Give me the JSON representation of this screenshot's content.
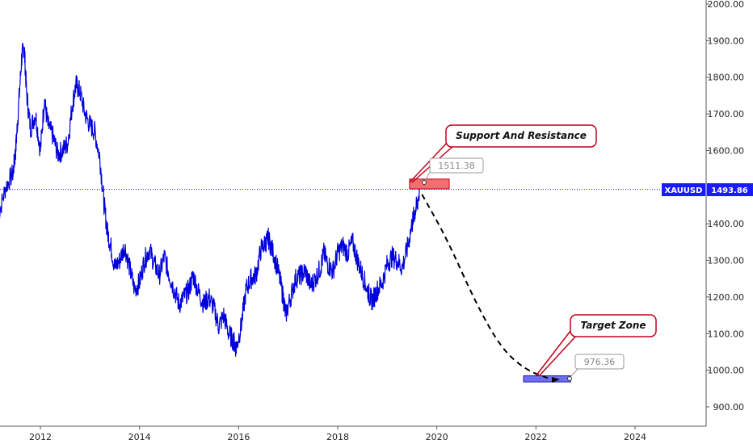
{
  "chart_data": {
    "type": "line",
    "symbol": "XAUUSD",
    "last_price": "1493.86",
    "last_price_value": 1493.86,
    "colors": {
      "series": "#0000dd",
      "resistance_zone": "#f07070",
      "target_zone": "#6e6ef0",
      "callout_border": "#c0001a",
      "last_tag_bg": "#1a1aff",
      "dash": "#000000"
    },
    "ylim": [
      860,
      2000
    ],
    "yticks": [
      "900.00",
      "1000.00",
      "1100.00",
      "1200.00",
      "1300.00",
      "1400.00",
      "1500.00",
      "1600.00",
      "1700.00",
      "1800.00",
      "1900.00",
      "2000.00"
    ],
    "ytick_values": [
      900,
      1000,
      1100,
      1200,
      1300,
      1400,
      1500,
      1600,
      1700,
      1800,
      1900,
      2000
    ],
    "xlim": [
      2011.15,
      2025.3
    ],
    "xticks": [
      "2012",
      "2014",
      "2016",
      "2018",
      "2020",
      "2022",
      "2024"
    ],
    "xtick_values": [
      2012,
      2014,
      2016,
      2018,
      2020,
      2022,
      2024
    ],
    "series": [
      {
        "x": [
          2011.15,
          2011.3,
          2011.45,
          2011.5,
          2011.55,
          2011.62,
          2011.67,
          2011.72,
          2011.8,
          2011.9,
          2012.0,
          2012.08,
          2012.15,
          2012.25,
          2012.35,
          2012.45,
          2012.55,
          2012.65,
          2012.72,
          2012.8,
          2012.9,
          2013.0,
          2013.1,
          2013.2,
          2013.28,
          2013.35,
          2013.42,
          2013.5,
          2013.6,
          2013.7,
          2013.8,
          2013.9,
          2014.0,
          2014.1,
          2014.2,
          2014.3,
          2014.4,
          2014.5,
          2014.6,
          2014.7,
          2014.8,
          2014.9,
          2015.0,
          2015.08,
          2015.2,
          2015.3,
          2015.4,
          2015.5,
          2015.6,
          2015.7,
          2015.8,
          2015.9,
          2015.95,
          2016.05,
          2016.15,
          2016.25,
          2016.35,
          2016.45,
          2016.55,
          2016.6,
          2016.7,
          2016.8,
          2016.9,
          2016.95,
          2017.05,
          2017.15,
          2017.25,
          2017.35,
          2017.45,
          2017.55,
          2017.65,
          2017.72,
          2017.8,
          2017.9,
          2018.0,
          2018.1,
          2018.2,
          2018.3,
          2018.4,
          2018.5,
          2018.6,
          2018.65,
          2018.7,
          2018.8,
          2018.9,
          2019.0,
          2019.1,
          2019.2,
          2019.3,
          2019.4,
          2019.5,
          2019.55,
          2019.6,
          2019.65
        ],
        "y": [
          1420,
          1500,
          1540,
          1600,
          1700,
          1850,
          1890,
          1760,
          1660,
          1700,
          1600,
          1740,
          1670,
          1640,
          1590,
          1600,
          1620,
          1730,
          1780,
          1760,
          1700,
          1670,
          1650,
          1580,
          1460,
          1380,
          1340,
          1280,
          1300,
          1340,
          1280,
          1220,
          1240,
          1300,
          1330,
          1290,
          1260,
          1310,
          1260,
          1220,
          1180,
          1200,
          1220,
          1260,
          1210,
          1180,
          1200,
          1170,
          1120,
          1150,
          1100,
          1080,
          1060,
          1120,
          1220,
          1250,
          1260,
          1330,
          1350,
          1360,
          1320,
          1270,
          1200,
          1150,
          1200,
          1250,
          1260,
          1270,
          1230,
          1250,
          1280,
          1320,
          1290,
          1270,
          1320,
          1340,
          1320,
          1350,
          1300,
          1260,
          1220,
          1200,
          1190,
          1220,
          1240,
          1290,
          1310,
          1300,
          1280,
          1330,
          1400,
          1430,
          1450,
          1490
        ]
      }
    ],
    "resistance_zone": {
      "x": [
        2019.45,
        2020.25
      ],
      "y": [
        1493,
        1511
      ]
    },
    "target_zone": {
      "x": [
        2021.75,
        2022.7
      ],
      "y": [
        968,
        985
      ]
    },
    "projection": {
      "x": [
        2019.7,
        2020.2,
        2020.8,
        2021.3,
        2021.8,
        2022.3
      ],
      "y": [
        1480,
        1360,
        1180,
        1060,
        1000,
        976
      ]
    },
    "annotations": {
      "support_resistance": "Support And Resistance",
      "target_zone": "Target Zone",
      "resistance_price": "1511.38",
      "target_price": "976.36"
    }
  }
}
